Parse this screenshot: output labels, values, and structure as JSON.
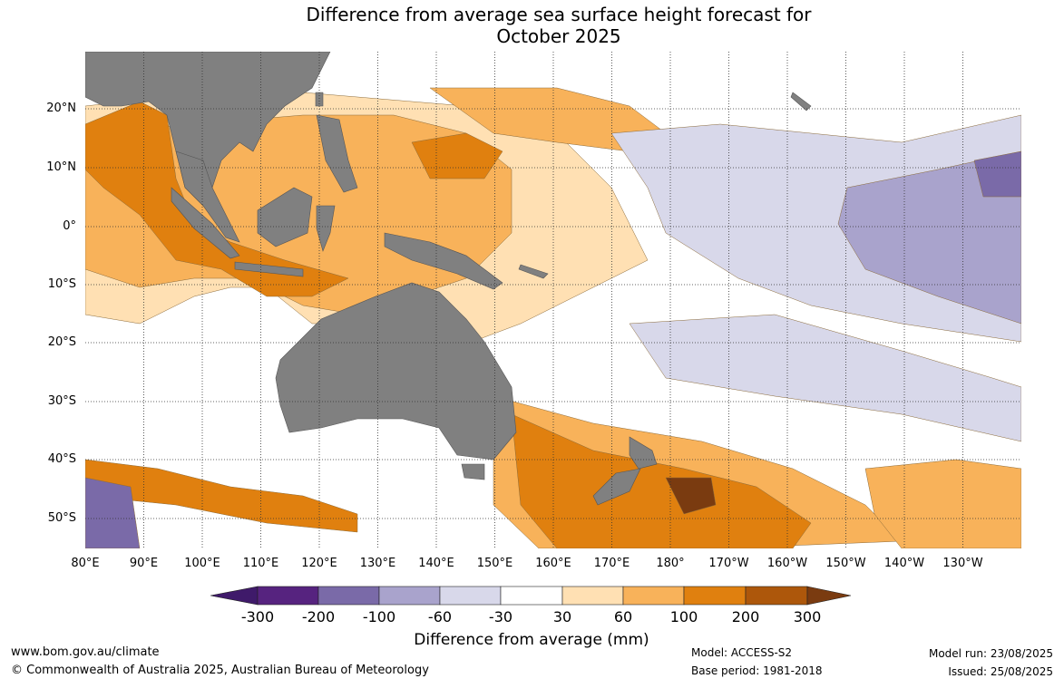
{
  "title": {
    "line1": "Difference from average sea surface height forecast for",
    "line2": "October 2025"
  },
  "map": {
    "region": "Indo-Pacific",
    "lon_range": [
      "80°E",
      "140°W"
    ],
    "lat_range": [
      "55°S",
      "30°N"
    ],
    "gridlines": true,
    "land_color": "#808080"
  },
  "lat_labels": [
    "20°N",
    "10°N",
    "0°",
    "10°S",
    "20°S",
    "30°S",
    "40°S",
    "50°S"
  ],
  "lon_labels": [
    "80°E",
    "90°E",
    "100°E",
    "110°E",
    "120°E",
    "130°E",
    "140°E",
    "150°E",
    "160°E",
    "170°E",
    "180°",
    "170°W",
    "160°W",
    "150°W",
    "140°W",
    "130°W"
  ],
  "colorbar": {
    "ticks": [
      "-300",
      "-200",
      "-100",
      "-60",
      "-30",
      "30",
      "60",
      "100",
      "200",
      "300"
    ],
    "colors": [
      "#3f1a6a",
      "#56237f",
      "#7a6aa8",
      "#a9a3cc",
      "#d8d8ea",
      "#ffffff",
      "#ffe0b3",
      "#f8b25a",
      "#e0800f",
      "#ad570b",
      "#7a3b10"
    ],
    "title": "Difference from average (mm)"
  },
  "footer": {
    "url": "www.bom.gov.au/climate",
    "copyright": "© Commonwealth of Australia 2025, Australian Bureau of Meteorology",
    "model": "Model: ACCESS-S2",
    "base_period": "Base period: 1981-2018",
    "model_run": "Model run: 23/08/2025",
    "issued": "Issued: 25/08/2025"
  }
}
